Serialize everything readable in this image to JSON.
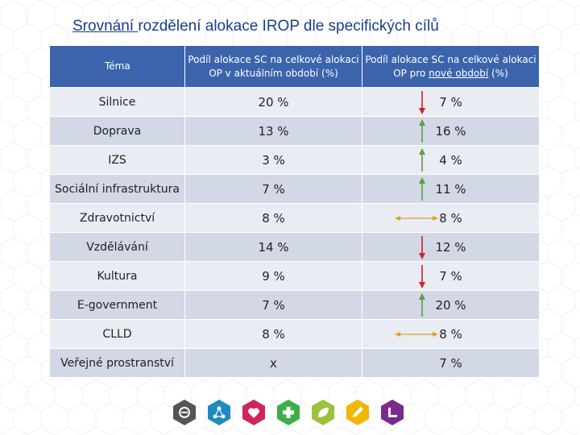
{
  "title": {
    "underlined": "Srovnání ",
    "rest": "rozdělení alokace IROP dle specifických cílů"
  },
  "table": {
    "headers": {
      "topic": "Téma",
      "current": "Podíl alokace SC na celkové alokaci OP v aktuálním období (%)",
      "new_prefix": "Podíl alokace SC na celkové alokaci OP pro ",
      "new_underlined": "nové období",
      "new_suffix": " (%)"
    },
    "rows": [
      {
        "topic": "Silnice",
        "current": "20 %",
        "trend": "down",
        "new": "7 %"
      },
      {
        "topic": "Doprava",
        "current": "13 %",
        "trend": "up",
        "new": "16 %"
      },
      {
        "topic": "IZS",
        "current": "3 %",
        "trend": "up",
        "new": "4 %"
      },
      {
        "topic": "Sociální infrastruktura",
        "current": "7 %",
        "trend": "up",
        "new": "11 %"
      },
      {
        "topic": "Zdravotnictví",
        "current": "8 %",
        "trend": "same",
        "new": "8 %"
      },
      {
        "topic": "Vzdělávání",
        "current": "14 %",
        "trend": "down",
        "new": "12 %"
      },
      {
        "topic": "Kultura",
        "current": "9 %",
        "trend": "down",
        "new": "7 %"
      },
      {
        "topic": "E-government",
        "current": "7 %",
        "trend": "up",
        "new": "20 %"
      },
      {
        "topic": "CLLD",
        "current": "8 %",
        "trend": "same",
        "new": "8 %"
      },
      {
        "topic": "Veřejné prostranství",
        "current": "x",
        "trend": "none",
        "new": "7 %"
      }
    ]
  },
  "colors": {
    "header_bg": "#3b64ad",
    "title": "#1a3d8f",
    "up": "#5aa040",
    "down": "#d0202a",
    "same": "#e0a020",
    "x": "#d0202a"
  },
  "footer_icons": [
    {
      "name": "minus-hex-icon",
      "color": "#555555"
    },
    {
      "name": "network-hex-icon",
      "color": "#1f8ac0"
    },
    {
      "name": "heart-hex-icon",
      "color": "#d0245c"
    },
    {
      "name": "cross-hex-icon",
      "color": "#3cae49"
    },
    {
      "name": "leaf-hex-icon",
      "color": "#9ac23c"
    },
    {
      "name": "pencil-hex-icon",
      "color": "#f0b800"
    },
    {
      "name": "corner-hex-icon",
      "color": "#7a2a8a"
    }
  ]
}
